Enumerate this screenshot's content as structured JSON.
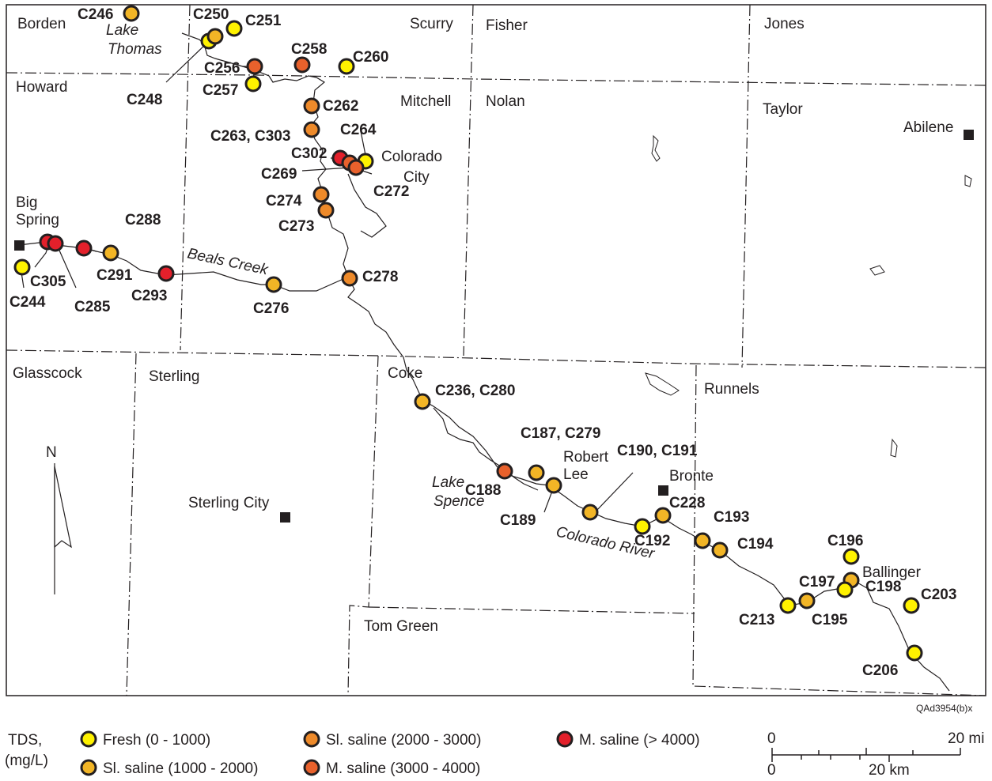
{
  "colors": {
    "fresh": "#fff200",
    "sl_saline_1": "#f2b526",
    "sl_saline_2": "#ee8a2a",
    "m_saline_1": "#e8612c",
    "m_saline_2": "#e3202b"
  },
  "counties": [
    "Borden",
    "Scurry",
    "Fisher",
    "Jones",
    "Howard",
    "Mitchell",
    "Nolan",
    "Taylor",
    "Glasscock",
    "Sterling",
    "Coke",
    "Runnels",
    "Tom Green"
  ],
  "places": [
    "Abilene",
    "Colorado",
    "City",
    "Big",
    "Spring",
    "Sterling City",
    "Robert",
    "Lee",
    "Bronte",
    "Ballinger"
  ],
  "water": [
    "Lake",
    "Thomas",
    "Beals Creek",
    "Lake",
    "Spence",
    "Colorado River"
  ],
  "sites": [
    {
      "id": "C246",
      "class": "sl_saline_1"
    },
    {
      "id": "C250",
      "class": "fresh"
    },
    {
      "id": "C251",
      "class": "sl_saline_1"
    },
    {
      "id": "C248",
      "class": "fresh"
    },
    {
      "id": "C256",
      "class": "m_saline_1"
    },
    {
      "id": "C257",
      "class": "fresh"
    },
    {
      "id": "C258",
      "class": "m_saline_1"
    },
    {
      "id": "C260",
      "class": "fresh"
    },
    {
      "id": "C262",
      "class": "sl_saline_2"
    },
    {
      "id": "C263, C303",
      "class": "sl_saline_2"
    },
    {
      "id": "C264",
      "class": "fresh"
    },
    {
      "id": "C302",
      "class": "m_saline_2"
    },
    {
      "id": "C269",
      "class": "m_saline_1"
    },
    {
      "id": "C272",
      "class": "m_saline_1"
    },
    {
      "id": "C274",
      "class": "sl_saline_2"
    },
    {
      "id": "C273",
      "class": "sl_saline_2"
    },
    {
      "id": "C288",
      "class": "m_saline_2"
    },
    {
      "id": "C305",
      "class": "m_saline_2"
    },
    {
      "id": "C285",
      "class": "m_saline_2"
    },
    {
      "id": "C291",
      "class": "sl_saline_1"
    },
    {
      "id": "C293",
      "class": "m_saline_2"
    },
    {
      "id": "C244",
      "class": "fresh"
    },
    {
      "id": "C276",
      "class": "sl_saline_1"
    },
    {
      "id": "C278",
      "class": "sl_saline_2"
    },
    {
      "id": "C236, C280",
      "class": "sl_saline_1"
    },
    {
      "id": "C187, C279",
      "class": "sl_saline_1"
    },
    {
      "id": "C188",
      "class": "m_saline_1"
    },
    {
      "id": "C189",
      "class": "sl_saline_1"
    },
    {
      "id": "C190, C191",
      "class": "sl_saline_1"
    },
    {
      "id": "C228",
      "class": "sl_saline_1"
    },
    {
      "id": "C192",
      "class": "fresh"
    },
    {
      "id": "C193",
      "class": "sl_saline_1"
    },
    {
      "id": "C194",
      "class": "sl_saline_1"
    },
    {
      "id": "C196",
      "class": "fresh"
    },
    {
      "id": "C197",
      "class": "sl_saline_1"
    },
    {
      "id": "C198",
      "class": "fresh"
    },
    {
      "id": "C195",
      "class": "sl_saline_1"
    },
    {
      "id": "C213",
      "class": "fresh"
    },
    {
      "id": "C203",
      "class": "fresh"
    },
    {
      "id": "C206",
      "class": "fresh"
    }
  ],
  "legend": {
    "title_line1": "TDS,",
    "title_line2": "(mg/L)",
    "items": [
      {
        "label": "Fresh (0 - 1000)",
        "class": "fresh"
      },
      {
        "label": "Sl. saline (1000 - 2000)",
        "class": "sl_saline_1"
      },
      {
        "label": "Sl. saline (2000 - 3000)",
        "class": "sl_saline_2"
      },
      {
        "label": "M. saline (3000 - 4000)",
        "class": "m_saline_1"
      },
      {
        "label": "M. saline (> 4000)",
        "class": "m_saline_2"
      }
    ]
  },
  "scale": {
    "mi_zero": "0",
    "mi_label": "20 mi",
    "km_zero": "0",
    "km_label": "20 km"
  },
  "north": "N",
  "figure_id": "QAd3954(b)x"
}
